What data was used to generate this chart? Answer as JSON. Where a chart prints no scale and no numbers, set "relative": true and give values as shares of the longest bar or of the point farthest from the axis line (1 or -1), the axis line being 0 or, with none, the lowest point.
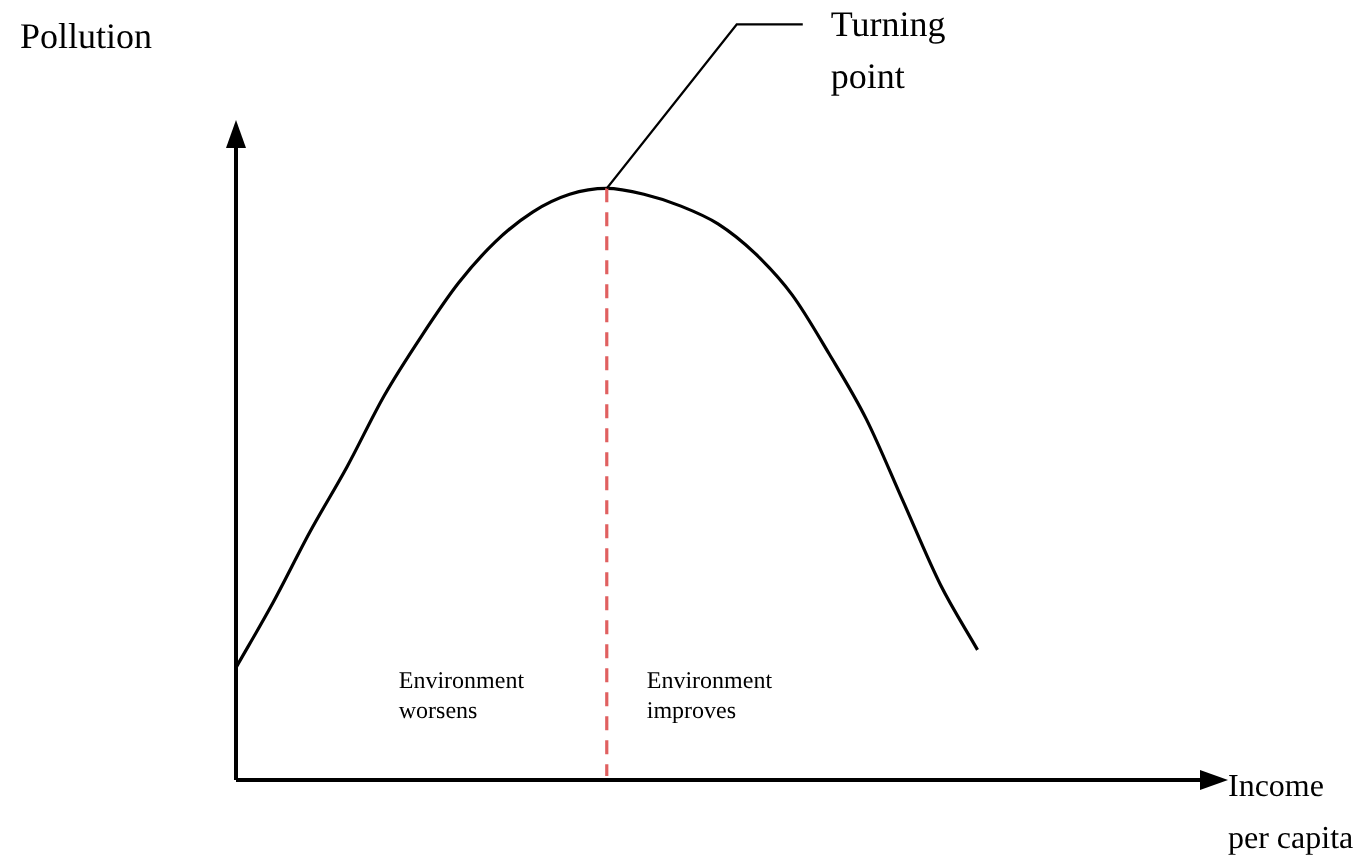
{
  "chart_data": {
    "type": "line",
    "relative": true,
    "xlabel": "Income per capita",
    "ylabel": "Pollution",
    "categories": [
      null,
      null,
      null,
      null,
      null,
      null,
      null,
      null,
      null,
      null,
      null,
      null,
      null,
      null,
      null,
      null,
      null,
      null,
      null,
      null,
      null,
      null,
      null,
      null,
      null,
      null,
      null
    ],
    "series": [
      {
        "color": "#000000",
        "values": [
          0.19,
          0.3,
          0.42,
          0.53,
          0.65,
          0.75,
          0.84,
          0.91,
          0.96,
          0.99,
          1,
          0.99,
          0.97,
          0.94,
          0.89,
          0.82,
          0.72,
          0.61,
          0.47,
          0.33,
          0.22,
          null,
          null,
          null,
          null,
          null,
          null
        ]
      }
    ],
    "annotations": [
      "Turning point",
      "Environment worsens",
      "Environment improves"
    ],
    "grid": false,
    "legend": false,
    "tick_labels": false,
    "marker": "none",
    "line_style": "solid"
  }
}
